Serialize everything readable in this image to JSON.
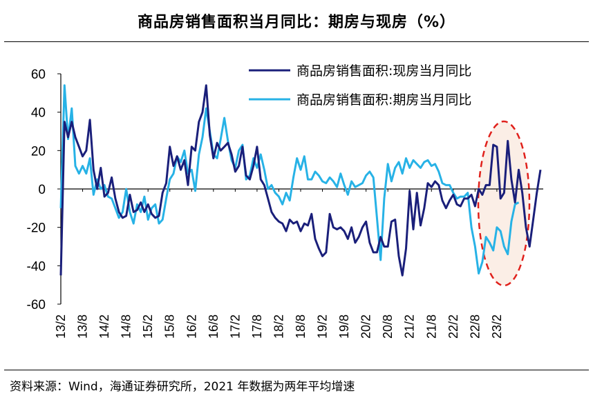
{
  "title": "商品房销售面积当月同比：期房与现房（%）",
  "source": "资料来源：Wind，海通证券研究所，2021 年数据为两年平均增速",
  "colors": {
    "series1": "#1a1f7a",
    "series2": "#27b2e6",
    "highlight": "#e0201b",
    "highlightFill": "#fbeee6"
  },
  "chart_data": {
    "type": "line",
    "ylim": [
      -60,
      60
    ],
    "y_ticks": [
      "60",
      "40",
      "20",
      "0",
      "-20",
      "-40",
      "-60"
    ],
    "x_ticks": [
      "13/2",
      "13/8",
      "14/2",
      "14/8",
      "15/2",
      "15/8",
      "16/2",
      "16/8",
      "17/2",
      "17/8",
      "18/2",
      "18/8",
      "19/2",
      "19/8",
      "20/2",
      "20/8",
      "21/2",
      "21/8",
      "22/2",
      "22/8",
      "23/2"
    ],
    "series": [
      {
        "name": "商品房销售面积:现房当月同比",
        "values": [
          -45,
          35,
          27,
          35,
          27,
          22,
          17,
          20,
          36,
          10,
          0,
          11,
          -4,
          -2,
          6,
          -5,
          -12,
          -15,
          -14,
          -3,
          -12,
          -11,
          -7,
          -12,
          -8,
          -13,
          -15,
          -14,
          -2,
          3,
          22,
          12,
          17,
          10,
          15,
          2,
          22,
          20,
          35,
          40,
          54,
          28,
          16,
          24,
          20,
          22,
          24,
          18,
          9,
          12,
          22,
          7,
          5,
          12,
          22,
          5,
          2,
          -5,
          -12,
          -15,
          -17,
          -18,
          -22,
          -16,
          -18,
          -17,
          -22,
          -18,
          -19,
          -13,
          -26,
          -31,
          -35,
          -33,
          -13,
          -20,
          -21,
          -20,
          -22,
          -26,
          -20,
          -28,
          -25,
          -20,
          -17,
          -28,
          -33,
          -33,
          -25,
          -30,
          -30,
          -17,
          -16,
          -35,
          -45,
          -31,
          -1,
          -21,
          -2,
          -19,
          -10,
          3,
          1,
          4,
          2,
          -6,
          -10,
          -6,
          -3,
          -8,
          -9,
          -5,
          -5,
          -3,
          -9,
          0,
          -3,
          2,
          2,
          23,
          22,
          -5,
          -2,
          25,
          5,
          -7,
          10,
          -2,
          -20,
          -30,
          -16,
          -2,
          10
        ]
      },
      {
        "name": "商品房销售面积:期房当月同比",
        "values": [
          -10,
          54,
          26,
          42,
          12,
          8,
          12,
          8,
          16,
          -3,
          5,
          0,
          2,
          -4,
          -5,
          -10,
          -15,
          -12,
          0,
          -12,
          -18,
          -8,
          -12,
          -4,
          -16,
          -10,
          -8,
          -18,
          -16,
          -5,
          5,
          8,
          17,
          14,
          20,
          8,
          10,
          -1,
          18,
          27,
          42,
          30,
          18,
          16,
          26,
          37,
          25,
          15,
          11,
          20,
          23,
          5,
          7,
          16,
          11,
          18,
          10,
          0,
          2,
          -2,
          -4,
          -8,
          -2,
          -6,
          6,
          16,
          10,
          17,
          5,
          5,
          9,
          7,
          4,
          3,
          6,
          4,
          1,
          8,
          2,
          -3,
          4,
          1,
          2,
          3,
          7,
          9,
          6,
          -15,
          -37,
          -5,
          13,
          4,
          11,
          14,
          8,
          16,
          11,
          15,
          13,
          11,
          14,
          15,
          12,
          13,
          9,
          3,
          2,
          2,
          -2,
          -5,
          -4,
          -4,
          -2,
          -20,
          -30,
          -44,
          -38,
          -25,
          -28,
          -32,
          -20,
          -22,
          -30,
          -34,
          -17,
          -8,
          -7
        ]
      }
    ]
  }
}
